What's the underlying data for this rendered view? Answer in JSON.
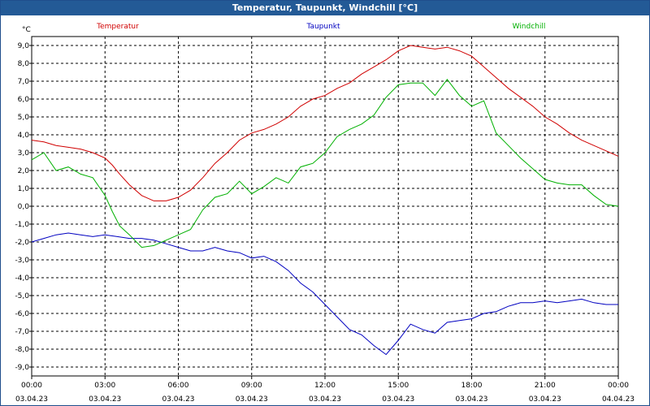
{
  "window": {
    "title": "Temperatur, Taupunkt, Windchill [°C]"
  },
  "chart_data": {
    "type": "line",
    "title": "Temperatur, Taupunkt, Windchill [°C]",
    "ylabel": "°C",
    "ylim": [
      -9.5,
      9.5
    ],
    "y_ticks": [
      9.0,
      8.0,
      7.0,
      6.0,
      5.0,
      4.0,
      3.0,
      2.0,
      1.0,
      0.0,
      -1.0,
      -2.0,
      -3.0,
      -4.0,
      -5.0,
      -6.0,
      -7.0,
      -8.0,
      -9.0
    ],
    "y_tick_labels": [
      "9,0",
      "8,0",
      "7,0",
      "6,0",
      "5,0",
      "4,0",
      "3,0",
      "2,0",
      "1,0",
      "0,0",
      "-1,0",
      "-2,0",
      "-3,0",
      "-4,0",
      "-5,0",
      "-6,0",
      "-7,0",
      "-8,0",
      "-9,0"
    ],
    "x_range_hours": [
      0,
      24
    ],
    "x_ticks": [
      {
        "hour": 0,
        "time": "00:00",
        "date": "03.04.23"
      },
      {
        "hour": 3,
        "time": "03:00",
        "date": "03.04.23"
      },
      {
        "hour": 6,
        "time": "06:00",
        "date": "03.04.23"
      },
      {
        "hour": 9,
        "time": "09:00",
        "date": "03.04.23"
      },
      {
        "hour": 12,
        "time": "12:00",
        "date": "03.04.23"
      },
      {
        "hour": 15,
        "time": "15:00",
        "date": "03.04.23"
      },
      {
        "hour": 18,
        "time": "18:00",
        "date": "03.04.23"
      },
      {
        "hour": 21,
        "time": "21:00",
        "date": "03.04.23"
      },
      {
        "hour": 24,
        "time": "00:00",
        "date": "04.04.23"
      }
    ],
    "grid": true,
    "series": [
      {
        "name": "Temperatur",
        "color": "#d00000",
        "points": [
          [
            0,
            3.7
          ],
          [
            0.5,
            3.6
          ],
          [
            1,
            3.4
          ],
          [
            1.5,
            3.3
          ],
          [
            2,
            3.2
          ],
          [
            2.5,
            3.0
          ],
          [
            3,
            2.7
          ],
          [
            3.3,
            2.3
          ],
          [
            3.6,
            1.8
          ],
          [
            4,
            1.2
          ],
          [
            4.5,
            0.6
          ],
          [
            5,
            0.3
          ],
          [
            5.5,
            0.3
          ],
          [
            6,
            0.5
          ],
          [
            6.5,
            0.9
          ],
          [
            7,
            1.6
          ],
          [
            7.5,
            2.4
          ],
          [
            8,
            3.0
          ],
          [
            8.5,
            3.7
          ],
          [
            9,
            4.1
          ],
          [
            9.5,
            4.3
          ],
          [
            10,
            4.6
          ],
          [
            10.5,
            5.0
          ],
          [
            11,
            5.6
          ],
          [
            11.5,
            6.0
          ],
          [
            12,
            6.2
          ],
          [
            12.5,
            6.6
          ],
          [
            13,
            6.9
          ],
          [
            13.5,
            7.4
          ],
          [
            14,
            7.8
          ],
          [
            14.5,
            8.2
          ],
          [
            15,
            8.7
          ],
          [
            15.5,
            9.0
          ],
          [
            16,
            8.9
          ],
          [
            16.5,
            8.8
          ],
          [
            17,
            8.9
          ],
          [
            17.5,
            8.7
          ],
          [
            18,
            8.4
          ],
          [
            18.5,
            7.8
          ],
          [
            19,
            7.2
          ],
          [
            19.5,
            6.6
          ],
          [
            20,
            6.1
          ],
          [
            20.5,
            5.6
          ],
          [
            21,
            5.0
          ],
          [
            21.5,
            4.6
          ],
          [
            22,
            4.1
          ],
          [
            22.5,
            3.7
          ],
          [
            23,
            3.4
          ],
          [
            23.5,
            3.1
          ],
          [
            24,
            2.8
          ]
        ]
      },
      {
        "name": "Taupunkt",
        "color": "#0000c0",
        "points": [
          [
            0,
            -2.0
          ],
          [
            0.5,
            -1.8
          ],
          [
            1,
            -1.6
          ],
          [
            1.5,
            -1.5
          ],
          [
            2,
            -1.6
          ],
          [
            2.5,
            -1.7
          ],
          [
            3,
            -1.6
          ],
          [
            3.5,
            -1.7
          ],
          [
            4,
            -1.8
          ],
          [
            4.5,
            -1.8
          ],
          [
            5,
            -1.9
          ],
          [
            5.5,
            -2.1
          ],
          [
            6,
            -2.3
          ],
          [
            6.5,
            -2.5
          ],
          [
            7,
            -2.5
          ],
          [
            7.5,
            -2.3
          ],
          [
            8,
            -2.5
          ],
          [
            8.5,
            -2.6
          ],
          [
            9,
            -2.9
          ],
          [
            9.5,
            -2.8
          ],
          [
            10,
            -3.1
          ],
          [
            10.5,
            -3.6
          ],
          [
            11,
            -4.3
          ],
          [
            11.5,
            -4.8
          ],
          [
            12,
            -5.5
          ],
          [
            12.5,
            -6.2
          ],
          [
            13,
            -6.9
          ],
          [
            13.5,
            -7.2
          ],
          [
            14,
            -7.8
          ],
          [
            14.5,
            -8.3
          ],
          [
            15,
            -7.5
          ],
          [
            15.5,
            -6.6
          ],
          [
            16,
            -6.9
          ],
          [
            16.5,
            -7.1
          ],
          [
            17,
            -6.5
          ],
          [
            17.5,
            -6.4
          ],
          [
            18,
            -6.3
          ],
          [
            18.5,
            -6.0
          ],
          [
            19,
            -5.9
          ],
          [
            19.5,
            -5.6
          ],
          [
            20,
            -5.4
          ],
          [
            20.5,
            -5.4
          ],
          [
            21,
            -5.3
          ],
          [
            21.5,
            -5.4
          ],
          [
            22,
            -5.3
          ],
          [
            22.5,
            -5.2
          ],
          [
            23,
            -5.4
          ],
          [
            23.5,
            -5.5
          ],
          [
            24,
            -5.5
          ]
        ]
      },
      {
        "name": "Windchill",
        "color": "#00b000",
        "points": [
          [
            0,
            2.6
          ],
          [
            0.5,
            3.0
          ],
          [
            1,
            2.0
          ],
          [
            1.5,
            2.2
          ],
          [
            2,
            1.8
          ],
          [
            2.5,
            1.6
          ],
          [
            3,
            0.6
          ],
          [
            3.3,
            -0.3
          ],
          [
            3.6,
            -1.1
          ],
          [
            4,
            -1.6
          ],
          [
            4.5,
            -2.3
          ],
          [
            5,
            -2.2
          ],
          [
            5.5,
            -1.9
          ],
          [
            6,
            -1.6
          ],
          [
            6.5,
            -1.3
          ],
          [
            7,
            -0.2
          ],
          [
            7.5,
            0.5
          ],
          [
            8,
            0.7
          ],
          [
            8.5,
            1.4
          ],
          [
            9,
            0.7
          ],
          [
            9.5,
            1.1
          ],
          [
            10,
            1.6
          ],
          [
            10.5,
            1.3
          ],
          [
            11,
            2.2
          ],
          [
            11.5,
            2.4
          ],
          [
            12,
            3.0
          ],
          [
            12.5,
            3.9
          ],
          [
            13,
            4.3
          ],
          [
            13.5,
            4.6
          ],
          [
            14,
            5.1
          ],
          [
            14.5,
            6.1
          ],
          [
            15,
            6.8
          ],
          [
            15.5,
            6.9
          ],
          [
            16,
            6.9
          ],
          [
            16.5,
            6.2
          ],
          [
            17,
            7.1
          ],
          [
            17.5,
            6.2
          ],
          [
            18,
            5.6
          ],
          [
            18.5,
            5.9
          ],
          [
            19,
            4.1
          ],
          [
            19.5,
            3.4
          ],
          [
            20,
            2.7
          ],
          [
            20.5,
            2.1
          ],
          [
            21,
            1.5
          ],
          [
            21.5,
            1.3
          ],
          [
            22,
            1.2
          ],
          [
            22.5,
            1.2
          ],
          [
            23,
            0.6
          ],
          [
            23.5,
            0.1
          ],
          [
            24,
            0.0
          ]
        ]
      }
    ]
  }
}
